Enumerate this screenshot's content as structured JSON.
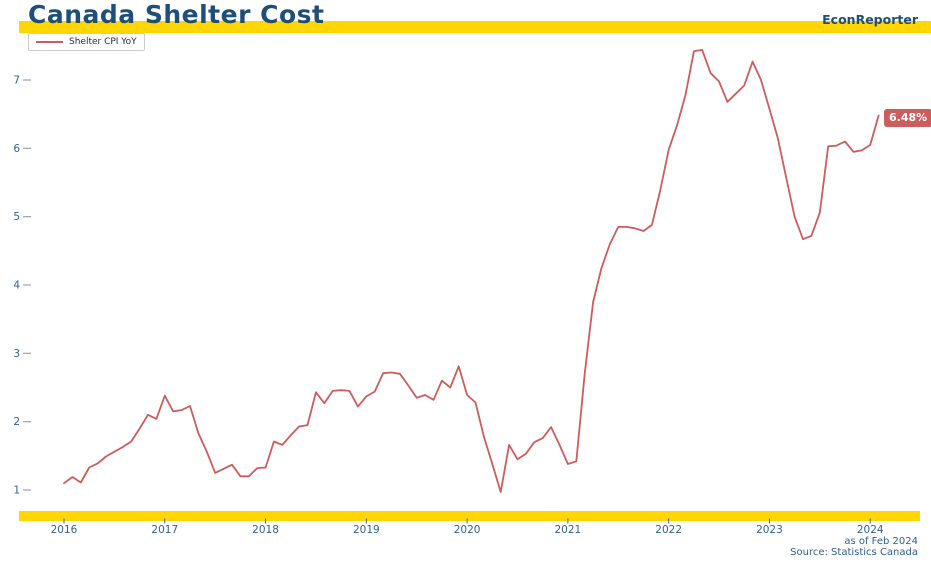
{
  "header": {
    "title": "Canada Shelter Cost",
    "brand": "EconReporter"
  },
  "legend": {
    "label": "Shelter CPI YoY"
  },
  "end_label": "6.48%",
  "footer": {
    "as_of": "as of Feb 2024",
    "source": "Source: Statistics Canada"
  },
  "colors": {
    "accent": "#ffd600",
    "title_text": "#1f4e79",
    "axis_text": "#31618f",
    "tick_dash": "#94a3b8",
    "line": "#cd5c5c",
    "badge_bg": "#cd5c5c",
    "badge_text": "#ffffff",
    "footnote_text": "#2e5e8e",
    "legend_border": "#cccccc",
    "legend_text": "#2b2b2b"
  },
  "chart_data": {
    "type": "line",
    "title": "Canada Shelter Cost",
    "xlabel": "",
    "ylabel": "",
    "unit": "%",
    "grid": false,
    "legend_position": "top-left",
    "x_start": "2016-01",
    "x_end": "2024-02",
    "x_freq": "monthly",
    "x_tick_labels": [
      "2016",
      "2017",
      "2018",
      "2019",
      "2020",
      "2021",
      "2022",
      "2023",
      "2024"
    ],
    "y_ticks": [
      1,
      2,
      3,
      4,
      5,
      6,
      7
    ],
    "ylim": [
      0.7,
      7.5
    ],
    "latest_point": {
      "date": "2024-02",
      "value": 6.48
    },
    "series": [
      {
        "name": "Shelter CPI YoY",
        "values": [
          1.1,
          1.19,
          1.11,
          1.33,
          1.39,
          1.49,
          1.56,
          1.63,
          1.71,
          1.9,
          2.1,
          2.04,
          2.38,
          2.15,
          2.17,
          2.23,
          1.83,
          1.56,
          1.25,
          1.31,
          1.37,
          1.2,
          1.2,
          1.32,
          1.33,
          1.71,
          1.66,
          1.8,
          1.93,
          1.95,
          2.43,
          2.27,
          2.45,
          2.46,
          2.45,
          2.22,
          2.37,
          2.44,
          2.71,
          2.72,
          2.7,
          2.53,
          2.35,
          2.39,
          2.32,
          2.6,
          2.5,
          2.81,
          2.39,
          2.28,
          1.78,
          1.38,
          0.97,
          1.66,
          1.45,
          1.53,
          1.7,
          1.76,
          1.92,
          1.66,
          1.38,
          1.42,
          2.7,
          3.75,
          4.25,
          4.6,
          4.85,
          4.85,
          4.83,
          4.79,
          4.88,
          5.39,
          5.98,
          6.34,
          6.78,
          7.42,
          7.44,
          7.1,
          6.98,
          6.68,
          6.8,
          6.92,
          7.27,
          7.0,
          6.58,
          6.15,
          5.57,
          5.0,
          4.67,
          4.72,
          5.06,
          6.03,
          6.04,
          6.1,
          5.95,
          5.97,
          6.05,
          6.48
        ]
      }
    ]
  }
}
